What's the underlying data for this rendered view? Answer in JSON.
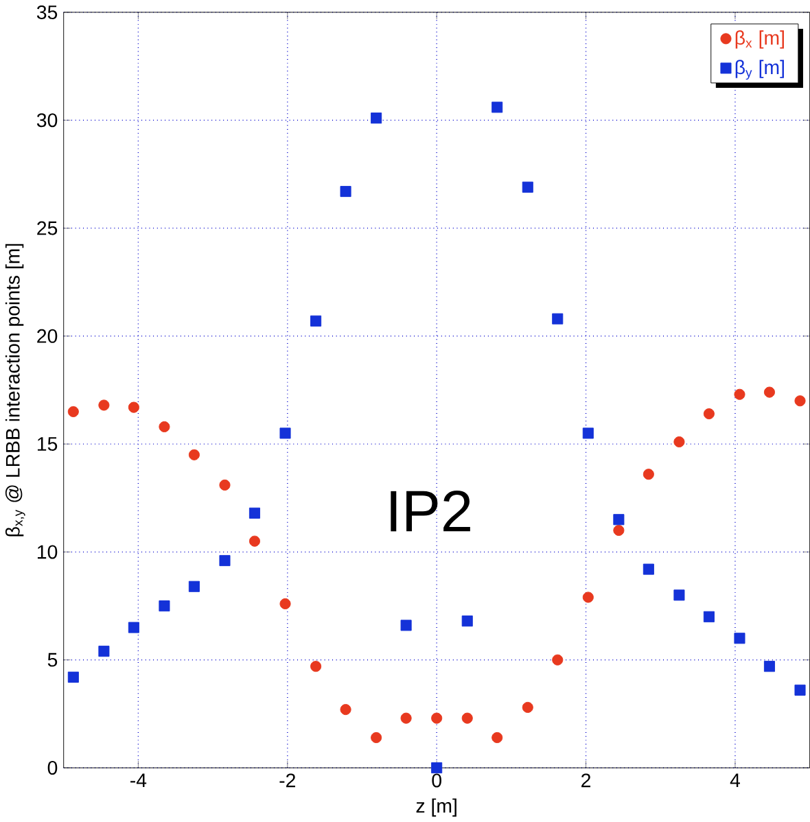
{
  "chart_data": {
    "type": "scatter",
    "xlabel": "z [m]",
    "ylabel": "β$_{x,y}$ @ LRBB interaction points [m]",
    "x": [
      -4.87,
      -4.46,
      -4.06,
      -3.65,
      -3.25,
      -2.84,
      -2.44,
      -2.03,
      -1.62,
      -1.22,
      -0.81,
      -0.41,
      0,
      0.41,
      0.81,
      1.22,
      1.62,
      2.03,
      2.44,
      2.84,
      3.25,
      3.65,
      4.06,
      4.46,
      4.87
    ],
    "series": [
      {
        "name": "β$_{x}$ [m]",
        "color": "#e8391f",
        "marker": "circle",
        "values": [
          16.5,
          16.8,
          16.7,
          15.8,
          14.5,
          13.1,
          10.5,
          7.6,
          4.7,
          2.7,
          1.4,
          2.3,
          2.3,
          2.3,
          1.4,
          2.8,
          5.0,
          7.9,
          11.0,
          13.6,
          15.1,
          16.4,
          17.3,
          17.4,
          17.0
        ]
      },
      {
        "name": "β$_{y}$ [m]",
        "color": "#1432d8",
        "marker": "square",
        "values": [
          4.2,
          5.4,
          6.5,
          7.5,
          8.4,
          9.6,
          11.8,
          15.5,
          20.7,
          26.7,
          30.1,
          6.6,
          0,
          6.8,
          30.6,
          26.9,
          20.8,
          15.5,
          11.5,
          9.2,
          8.0,
          7.0,
          6.0,
          4.7,
          3.6
        ]
      }
    ],
    "xlim": [
      -5,
      5
    ],
    "ylim": [
      0,
      35
    ],
    "xticks": [
      -4,
      -2,
      0,
      2,
      4
    ],
    "yticks": [
      0,
      5,
      10,
      15,
      20,
      25,
      30,
      35
    ],
    "grid": true,
    "legend": "top right",
    "annotations": [
      "IP2"
    ]
  }
}
